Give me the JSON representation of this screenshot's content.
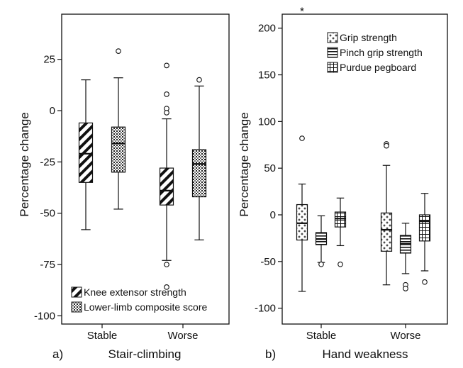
{
  "panels": [
    {
      "letter": "a)",
      "title": "Stair-climbing"
    },
    {
      "letter": "b)",
      "title": "Hand weakness"
    }
  ],
  "chart_data": [
    {
      "type": "box",
      "title": "Stair-climbing",
      "panel_label": "a)",
      "xlabel": "",
      "ylabel": "Percentage change",
      "ylim": [
        -104,
        47
      ],
      "yticks": [
        25,
        0,
        -25,
        -50,
        -75,
        -100
      ],
      "categories": [
        "Stable",
        "Worse"
      ],
      "legend_position": "bottom-left",
      "series": [
        {
          "name": "Knee extensor strength",
          "pattern": "diagonal-hatch",
          "boxes": [
            {
              "category": "Stable",
              "min": -58,
              "q1": -35,
              "median": -21,
              "q3": -6,
              "max": 15,
              "outliers": []
            },
            {
              "category": "Worse",
              "min": -73,
              "q1": -46,
              "median": -39,
              "q3": -28,
              "max": -4,
              "outliers": [
                22,
                8,
                1,
                -1,
                -75,
                -86
              ]
            }
          ]
        },
        {
          "name": "Lower-limb composite score",
          "pattern": "dots",
          "boxes": [
            {
              "category": "Stable",
              "min": -48,
              "q1": -30,
              "median": -16,
              "q3": -8,
              "max": 16,
              "outliers": [
                29
              ]
            },
            {
              "category": "Worse",
              "min": -63,
              "q1": -42,
              "median": -26,
              "q3": -19,
              "max": 12,
              "outliers": [
                15
              ]
            }
          ]
        }
      ]
    },
    {
      "type": "box",
      "title": "Hand weakness",
      "panel_label": "b)",
      "xlabel": "",
      "ylabel": "Percentage change",
      "ylim": [
        -117,
        215
      ],
      "yticks": [
        200,
        150,
        100,
        50,
        0,
        -50,
        -100
      ],
      "categories": [
        "Stable",
        "Worse"
      ],
      "legend_position": "top-right",
      "series": [
        {
          "name": "Grip strength",
          "pattern": "crosses",
          "boxes": [
            {
              "category": "Stable",
              "min": -82,
              "q1": -27,
              "median": -9,
              "q3": 11,
              "max": 33,
              "outliers": [
                82
              ],
              "extremes": [
                219
              ]
            },
            {
              "category": "Worse",
              "min": -75,
              "q1": -39,
              "median": -16,
              "q3": 2,
              "max": 53,
              "outliers": [
                76,
                74
              ],
              "extremes": []
            }
          ]
        },
        {
          "name": "Pinch grip strength",
          "pattern": "horizontal-lines",
          "boxes": [
            {
              "category": "Stable",
              "min": -51,
              "q1": -32,
              "median": -26,
              "q3": -19,
              "max": -1,
              "outliers": [
                -53
              ],
              "extremes": []
            },
            {
              "category": "Worse",
              "min": -63,
              "q1": -41,
              "median": -31,
              "q3": -22,
              "max": -9,
              "outliers": [
                -75,
                -79
              ],
              "extremes": []
            }
          ]
        },
        {
          "name": "Purdue pegboard",
          "pattern": "grid",
          "boxes": [
            {
              "category": "Stable",
              "min": -33,
              "q1": -13,
              "median": -4,
              "q3": 3,
              "max": 18,
              "outliers": [
                -53
              ],
              "extremes": []
            },
            {
              "category": "Worse",
              "min": -60,
              "q1": -28,
              "median": -7,
              "q3": 0,
              "max": 23,
              "outliers": [
                -72
              ],
              "extremes": []
            }
          ]
        }
      ]
    }
  ]
}
